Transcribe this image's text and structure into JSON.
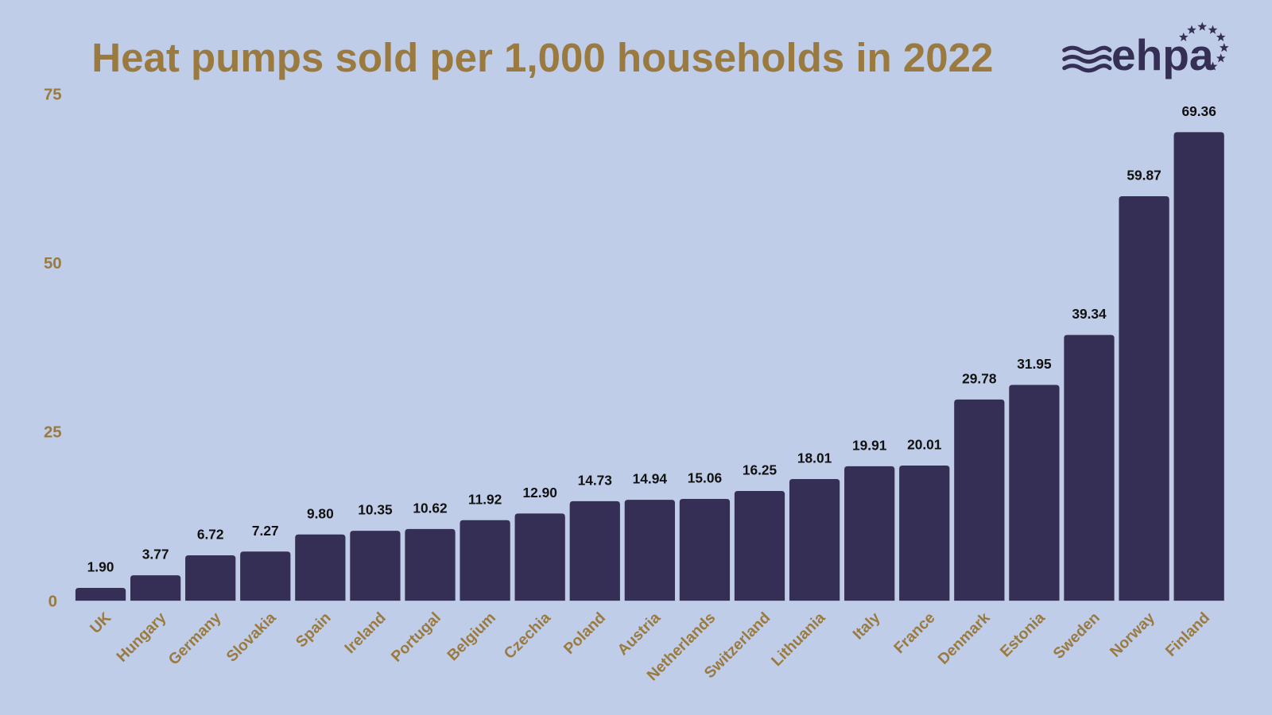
{
  "chart_data": {
    "type": "bar",
    "title": "Heat pumps sold per 1,000 households in 2022",
    "categories": [
      "UK",
      "Hungary",
      "Germany",
      "Slovakia",
      "Spain",
      "Ireland",
      "Portugal",
      "Belgium",
      "Czechia",
      "Poland",
      "Austria",
      "Netherlands",
      "Switzerland",
      "Lithuania",
      "Italy",
      "France",
      "Denmark",
      "Estonia",
      "Sweden",
      "Norway",
      "Finland"
    ],
    "values": [
      1.9,
      3.77,
      6.72,
      7.27,
      9.8,
      10.35,
      10.62,
      11.92,
      12.9,
      14.73,
      14.94,
      15.06,
      16.25,
      18.01,
      19.91,
      20.01,
      29.78,
      31.95,
      39.34,
      59.87,
      69.36
    ],
    "value_labels": [
      "1.90",
      "3.77",
      "6.72",
      "7.27",
      "9.80",
      "10.35",
      "10.62",
      "11.92",
      "12.90",
      "14.73",
      "14.94",
      "15.06",
      "16.25",
      "18.01",
      "19.91",
      "20.01",
      "29.78",
      "31.95",
      "39.34",
      "59.87",
      "69.36"
    ],
    "yticks": [
      "0",
      "25",
      "50",
      "75"
    ],
    "ylim": [
      0,
      75
    ],
    "grid": false,
    "xlabel": "",
    "ylabel": "",
    "colors": {
      "bar": "#352f55",
      "text_accent": "#9a7a3e",
      "background": "#bfcde8",
      "value_label": "#111111"
    }
  },
  "logo": {
    "text": "ehpa"
  }
}
